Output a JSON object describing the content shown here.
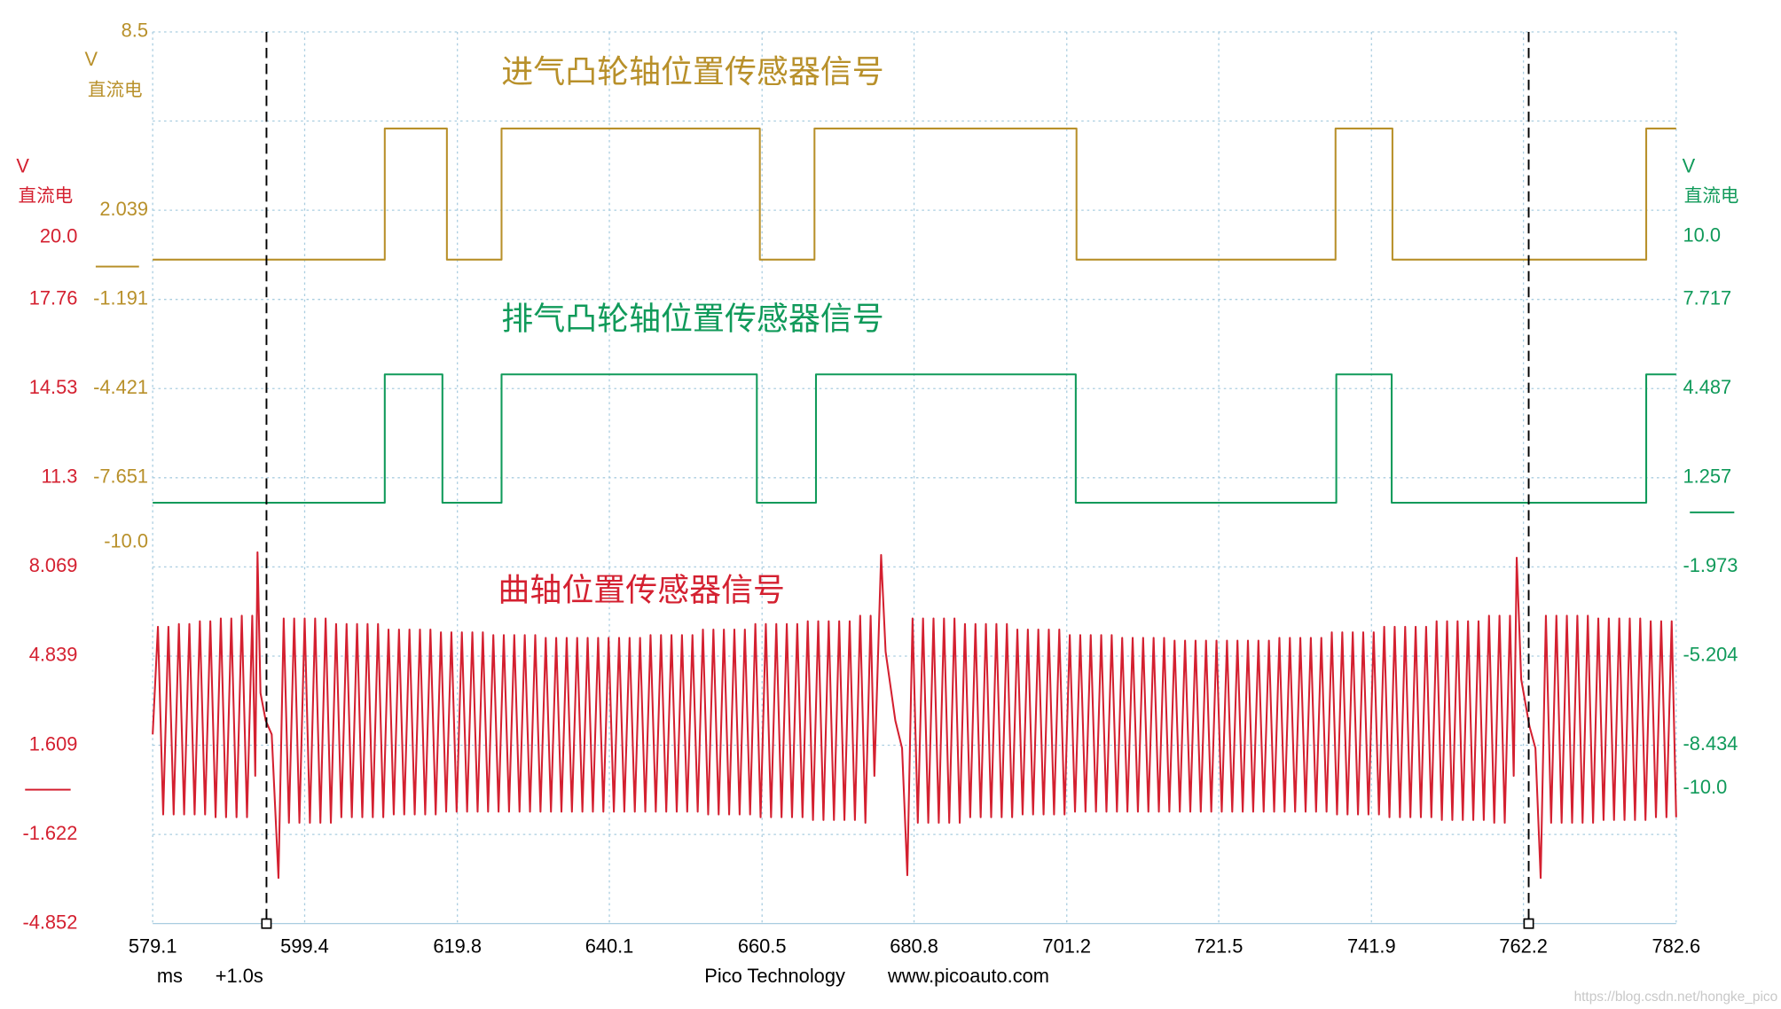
{
  "chart_data": {
    "type": "line",
    "xlim": [
      579.1,
      782.6
    ],
    "xticks": [
      579.1,
      599.4,
      619.8,
      640.1,
      660.5,
      680.8,
      701.2,
      721.5,
      741.9,
      762.2,
      782.6
    ],
    "x_unit": "ms",
    "time_offset": "+1.0s",
    "cursors": [
      594.3,
      762.9
    ],
    "footer": [
      "Pico Technology",
      "www.picoauto.com"
    ],
    "watermark": "https://blog.csdn.net/hongke_pico",
    "series": [
      {
        "name": "进气凸轮轴位置传感器信号",
        "color": "#b8902a",
        "unit": "V",
        "coupling": "直流电",
        "ylim": [
          -23.8,
          8.5
        ],
        "yticks": [
          8.5,
          2.039,
          -1.191,
          -4.421,
          -7.651,
          {
            "value": -10,
            "label": "-10.0"
          }
        ],
        "x": [
          579.1,
          610.1,
          610.1,
          618.4,
          618.4,
          625.7,
          625.7,
          660.2,
          660.2,
          667.5,
          667.5,
          702.5,
          702.5,
          737.1,
          737.1,
          744.7,
          744.7,
          778.6,
          778.6,
          782.6
        ],
        "values": [
          0.25,
          0.25,
          5.0,
          5.0,
          0.25,
          0.25,
          5.0,
          5.0,
          0.25,
          0.25,
          5.0,
          5.0,
          0.25,
          0.25,
          5.0,
          5.0,
          0.25,
          0.25,
          5.0,
          5.0
        ]
      },
      {
        "name": "排气凸轮轴位置传感器信号",
        "color": "#109a5a",
        "unit": "V",
        "coupling": "直流电",
        "ylim": [
          -14.9,
          17.41
        ],
        "yticks": [
          {
            "value": 10,
            "label": "10.0"
          },
          7.717,
          4.487,
          1.257,
          -1.973,
          -5.204,
          -8.434,
          {
            "value": -10,
            "label": "-10.0"
          }
        ],
        "x": [
          579.1,
          610.1,
          610.1,
          617.8,
          617.8,
          625.7,
          625.7,
          659.8,
          659.8,
          667.7,
          667.7,
          702.4,
          702.4,
          737.2,
          737.2,
          744.6,
          744.6,
          778.6,
          778.6,
          782.6
        ],
        "values": [
          0.35,
          0.35,
          5.0,
          5.0,
          0.35,
          0.35,
          5.0,
          5.0,
          0.35,
          0.35,
          5.0,
          5.0,
          0.35,
          0.35,
          5.0,
          5.0,
          0.35,
          0.35,
          5.0,
          5.0
        ]
      },
      {
        "name": "曲轴位置传感器信号",
        "color": "#d42030",
        "unit": "V",
        "coupling": "直流电",
        "ylim": [
          -4.852,
          27.45
        ],
        "yticks": [
          {
            "value": 20,
            "label": "20.0"
          },
          17.76,
          14.53,
          11.3,
          8.069,
          4.839,
          1.609,
          -1.622,
          -4.852
        ],
        "x": [
          579.1,
          579.8,
          580.5,
          581.2,
          581.9,
          582.6,
          583.3,
          584.0,
          584.7,
          585.4,
          586.1,
          586.8,
          587.5,
          588.2,
          588.9,
          589.6,
          590.3,
          591.0,
          591.7,
          592.4,
          592.8,
          593.1,
          593.5,
          594.2,
          595.0,
          595.9,
          596.6,
          597.3,
          598.0,
          598.7,
          599.4,
          600.1,
          600.8,
          601.5,
          602.2,
          602.9,
          603.6,
          604.3,
          605.0,
          605.7,
          606.4,
          607.1,
          607.8,
          608.5,
          609.2,
          609.9,
          610.6,
          611.3,
          612.0,
          612.7,
          613.4,
          614.1,
          614.8,
          615.5,
          616.2,
          616.9,
          617.6,
          618.3,
          619.0,
          619.7,
          620.4,
          621.1,
          621.8,
          622.5,
          623.2,
          623.9,
          624.6,
          625.3,
          626.0,
          626.7,
          627.4,
          628.1,
          628.8,
          629.5,
          630.2,
          630.9,
          631.6,
          632.3,
          633.0,
          633.7,
          634.4,
          635.1,
          635.8,
          636.5,
          637.2,
          637.9,
          638.6,
          639.3,
          640.0,
          640.7,
          641.4,
          642.1,
          642.8,
          643.5,
          644.2,
          644.9,
          645.6,
          646.3,
          647.0,
          647.7,
          648.4,
          649.1,
          649.8,
          650.5,
          651.2,
          651.9,
          652.6,
          653.3,
          654.0,
          654.7,
          655.4,
          656.1,
          656.8,
          657.5,
          658.2,
          658.9,
          659.6,
          660.3,
          661.0,
          661.7,
          662.4,
          663.1,
          663.8,
          664.5,
          665.2,
          665.9,
          666.6,
          667.3,
          668.0,
          668.7,
          669.4,
          670.1,
          670.8,
          671.5,
          672.2,
          672.9,
          673.6,
          674.3,
          675.0,
          675.5,
          676.4,
          677.0,
          678.3,
          679.2,
          679.9,
          680.6,
          681.3,
          682.0,
          682.7,
          683.4,
          684.1,
          684.8,
          685.5,
          686.2,
          686.9,
          687.6,
          688.3,
          689.0,
          689.7,
          690.4,
          691.1,
          691.8,
          692.5,
          693.2,
          693.9,
          694.6,
          695.3,
          696.0,
          696.7,
          697.4,
          698.1,
          698.8,
          699.5,
          700.2,
          700.9,
          701.6,
          702.3,
          703.0,
          703.7,
          704.4,
          705.1,
          705.8,
          706.5,
          707.2,
          707.9,
          708.6,
          709.3,
          710.0,
          710.7,
          711.4,
          712.1,
          712.8,
          713.5,
          714.2,
          714.9,
          715.6,
          716.3,
          717.0,
          717.7,
          718.4,
          719.1,
          719.8,
          720.5,
          721.2,
          721.9,
          722.6,
          723.3,
          724.0,
          724.7,
          725.4,
          726.1,
          726.8,
          727.5,
          728.2,
          728.9,
          729.6,
          730.3,
          731.0,
          731.7,
          732.4,
          733.1,
          733.8,
          734.5,
          735.2,
          735.9,
          736.6,
          737.3,
          738.0,
          738.7,
          739.4,
          740.1,
          740.8,
          741.5,
          742.2,
          742.9,
          743.6,
          744.3,
          745.0,
          745.7,
          746.4,
          747.1,
          747.8,
          748.5,
          749.2,
          749.9,
          750.6,
          751.3,
          752.0,
          752.7,
          753.4,
          754.1,
          754.8,
          755.5,
          756.2,
          756.9,
          757.6,
          758.3,
          759.0,
          759.7,
          760.4,
          760.9,
          761.3,
          761.9,
          763.0,
          763.8,
          764.5,
          765.2,
          765.9,
          766.6,
          767.3,
          768.0,
          768.7,
          769.4,
          770.1,
          770.8,
          771.5,
          772.2,
          772.9,
          773.6,
          774.3,
          775.0,
          775.7,
          776.4,
          777.1,
          777.8,
          778.5,
          779.2,
          779.9,
          780.6,
          781.3,
          782.0,
          782.6
        ],
        "values": [
          2.0,
          5.9,
          -0.9,
          5.9,
          -0.9,
          6.0,
          -0.9,
          6.0,
          -0.9,
          6.1,
          -0.9,
          6.1,
          -1.0,
          6.2,
          -1.0,
          6.2,
          -1.0,
          6.3,
          -1.0,
          6.3,
          0.5,
          8.6,
          3.5,
          2.5,
          2.0,
          -3.2,
          6.2,
          -1.2,
          6.2,
          -1.2,
          6.2,
          -1.2,
          6.2,
          -1.2,
          6.2,
          -1.2,
          6.0,
          -1.0,
          6.0,
          -1.0,
          6.0,
          -1.0,
          6.0,
          -1.0,
          6.0,
          -1.0,
          5.8,
          -0.9,
          5.8,
          -0.9,
          5.8,
          -0.9,
          5.8,
          -0.9,
          5.8,
          -0.9,
          5.7,
          -0.8,
          5.7,
          -0.8,
          5.7,
          -0.8,
          5.7,
          -0.8,
          5.7,
          -0.8,
          5.6,
          -0.8,
          5.6,
          -0.8,
          5.6,
          -0.8,
          5.6,
          -0.8,
          5.6,
          -0.8,
          5.5,
          -0.8,
          5.5,
          -0.8,
          5.5,
          -0.8,
          5.5,
          -0.8,
          5.5,
          -0.8,
          5.5,
          -0.8,
          5.5,
          -0.8,
          5.5,
          -0.8,
          5.5,
          -0.8,
          5.5,
          -0.8,
          5.6,
          -0.8,
          5.6,
          -0.8,
          5.6,
          -0.8,
          5.6,
          -0.8,
          5.6,
          -0.8,
          5.8,
          -0.9,
          5.8,
          -0.9,
          5.8,
          -0.9,
          5.8,
          -0.9,
          5.8,
          -0.9,
          6.0,
          -1.0,
          6.0,
          -1.0,
          6.0,
          -1.0,
          6.0,
          -1.0,
          6.0,
          -1.0,
          6.1,
          -1.1,
          6.1,
          -1.1,
          6.1,
          -1.1,
          6.1,
          -1.1,
          6.1,
          -1.1,
          6.3,
          -1.2,
          6.3,
          0.5,
          8.5,
          5.0,
          2.5,
          1.5,
          -3.1,
          6.2,
          -1.2,
          6.2,
          -1.2,
          6.2,
          -1.2,
          6.2,
          -1.2,
          6.2,
          -1.2,
          6.0,
          -1.0,
          6.0,
          -1.0,
          6.0,
          -1.0,
          6.0,
          -1.0,
          6.0,
          -1.0,
          5.8,
          -0.9,
          5.8,
          -0.9,
          5.8,
          -0.9,
          5.8,
          -0.9,
          5.8,
          -0.9,
          5.6,
          -0.8,
          5.6,
          -0.8,
          5.6,
          -0.8,
          5.6,
          -0.8,
          5.6,
          -0.8,
          5.5,
          -0.8,
          5.5,
          -0.8,
          5.5,
          -0.8,
          5.5,
          -0.8,
          5.5,
          -0.8,
          5.4,
          -0.8,
          5.4,
          -0.8,
          5.4,
          -0.8,
          5.4,
          -0.8,
          5.4,
          -0.8,
          5.4,
          -0.8,
          5.4,
          -0.8,
          5.4,
          -0.8,
          5.4,
          -0.8,
          5.4,
          -0.8,
          5.5,
          -0.8,
          5.5,
          -0.8,
          5.5,
          -0.8,
          5.5,
          -0.8,
          5.5,
          -0.8,
          5.7,
          -0.9,
          5.7,
          -0.9,
          5.7,
          -0.9,
          5.7,
          -0.9,
          5.7,
          -0.9,
          5.9,
          -1.0,
          5.9,
          -1.0,
          5.9,
          -1.0,
          5.9,
          -1.0,
          5.9,
          -1.0,
          6.1,
          -1.1,
          6.1,
          -1.1,
          6.1,
          -1.1,
          6.1,
          -1.1,
          6.1,
          -1.1,
          6.3,
          -1.2,
          6.3,
          -1.2,
          6.3,
          0.5,
          8.4,
          4.0,
          2.3,
          1.5,
          -3.2,
          6.3,
          -1.2,
          6.3,
          -1.2,
          6.3,
          -1.2,
          6.3,
          -1.2,
          6.3,
          -1.2,
          6.2,
          -1.1,
          6.2,
          -1.1,
          6.2,
          -1.1,
          6.2,
          -1.1,
          6.2,
          -1.1,
          6.1,
          -1.0,
          6.1,
          -1.0,
          6.1,
          -1.0
        ]
      }
    ]
  }
}
